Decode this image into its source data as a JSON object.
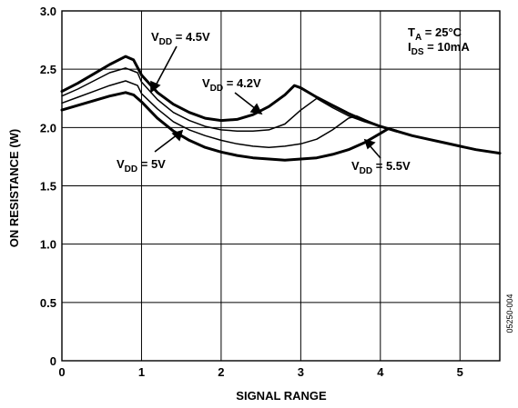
{
  "chart_data": {
    "type": "line",
    "title": "",
    "xlabel": "SIGNAL RANGE",
    "ylabel": "ON RESISTANCE (W)",
    "xlim": [
      0,
      5.5
    ],
    "ylim": [
      0,
      3.0
    ],
    "x_ticks": [
      "0",
      "1",
      "2",
      "3",
      "4",
      "5"
    ],
    "y_ticks": [
      "0",
      "0.5",
      "1.0",
      "1.5",
      "2.0",
      "2.5",
      "3.0"
    ],
    "grid": true,
    "conditions": [
      {
        "main": "T",
        "sub": "A",
        "rest": " = 25°C"
      },
      {
        "main": "I",
        "sub": "DS",
        "rest": " = 10mA"
      }
    ],
    "figure_code": "05250-004",
    "series": [
      {
        "name": "VDD = 4.2V",
        "label": {
          "main": "V",
          "sub": "DD",
          "rest": " = 4.2V"
        },
        "bold": true,
        "x": [
          0,
          0.2,
          0.4,
          0.6,
          0.8,
          0.9,
          1.0,
          1.2,
          1.4,
          1.6,
          1.8,
          2.0,
          2.2,
          2.4,
          2.6,
          2.8,
          2.92,
          3.0,
          3.2,
          3.4,
          3.6,
          3.8,
          4.0,
          4.2,
          4.4,
          4.6,
          4.8,
          5.0,
          5.2,
          5.5
        ],
        "values": [
          2.31,
          2.38,
          2.46,
          2.54,
          2.61,
          2.58,
          2.45,
          2.3,
          2.2,
          2.13,
          2.08,
          2.06,
          2.07,
          2.11,
          2.18,
          2.28,
          2.36,
          2.34,
          2.26,
          2.19,
          2.12,
          2.06,
          2.01,
          1.97,
          1.93,
          1.9,
          1.87,
          1.84,
          1.81,
          1.78
        ]
      },
      {
        "name": "VDD = 4.5V",
        "label": {
          "main": "V",
          "sub": "DD",
          "rest": " = 4.5V"
        },
        "bold": false,
        "x": [
          0,
          0.2,
          0.4,
          0.6,
          0.8,
          0.95,
          1.0,
          1.2,
          1.4,
          1.6,
          1.8,
          2.0,
          2.2,
          2.4,
          2.6,
          2.8,
          3.0,
          3.2,
          3.4,
          3.6,
          3.8,
          4.0
        ],
        "values": [
          2.27,
          2.33,
          2.4,
          2.47,
          2.51,
          2.47,
          2.39,
          2.24,
          2.13,
          2.06,
          2.01,
          1.98,
          1.97,
          1.97,
          1.98,
          2.03,
          2.15,
          2.25,
          2.17,
          2.1,
          2.05,
          2.01
        ]
      },
      {
        "name": "VDD = 5V",
        "label": {
          "main": "V",
          "sub": "DD",
          "rest": " = 5V"
        },
        "bold": false,
        "x": [
          0,
          0.2,
          0.4,
          0.6,
          0.8,
          0.95,
          1.0,
          1.2,
          1.4,
          1.6,
          1.8,
          2.0,
          2.2,
          2.4,
          2.6,
          2.8,
          3.0,
          3.2,
          3.4,
          3.6,
          3.7,
          3.8,
          4.0
        ],
        "values": [
          2.21,
          2.26,
          2.31,
          2.36,
          2.4,
          2.36,
          2.29,
          2.16,
          2.05,
          1.98,
          1.93,
          1.89,
          1.86,
          1.84,
          1.83,
          1.84,
          1.86,
          1.9,
          1.98,
          2.08,
          2.1,
          2.07,
          2.01
        ]
      },
      {
        "name": "VDD = 5.5V",
        "label": {
          "main": "V",
          "sub": "DD",
          "rest": " = 5.5V"
        },
        "bold": true,
        "x": [
          0,
          0.2,
          0.4,
          0.6,
          0.8,
          0.9,
          1.0,
          1.2,
          1.4,
          1.6,
          1.8,
          2.0,
          2.2,
          2.4,
          2.6,
          2.8,
          3.0,
          3.2,
          3.4,
          3.6,
          3.8,
          4.0,
          4.1,
          4.2
        ],
        "values": [
          2.15,
          2.19,
          2.23,
          2.27,
          2.3,
          2.28,
          2.22,
          2.08,
          1.97,
          1.89,
          1.83,
          1.79,
          1.76,
          1.74,
          1.73,
          1.72,
          1.73,
          1.74,
          1.77,
          1.81,
          1.87,
          1.95,
          1.99,
          1.97
        ]
      }
    ]
  }
}
